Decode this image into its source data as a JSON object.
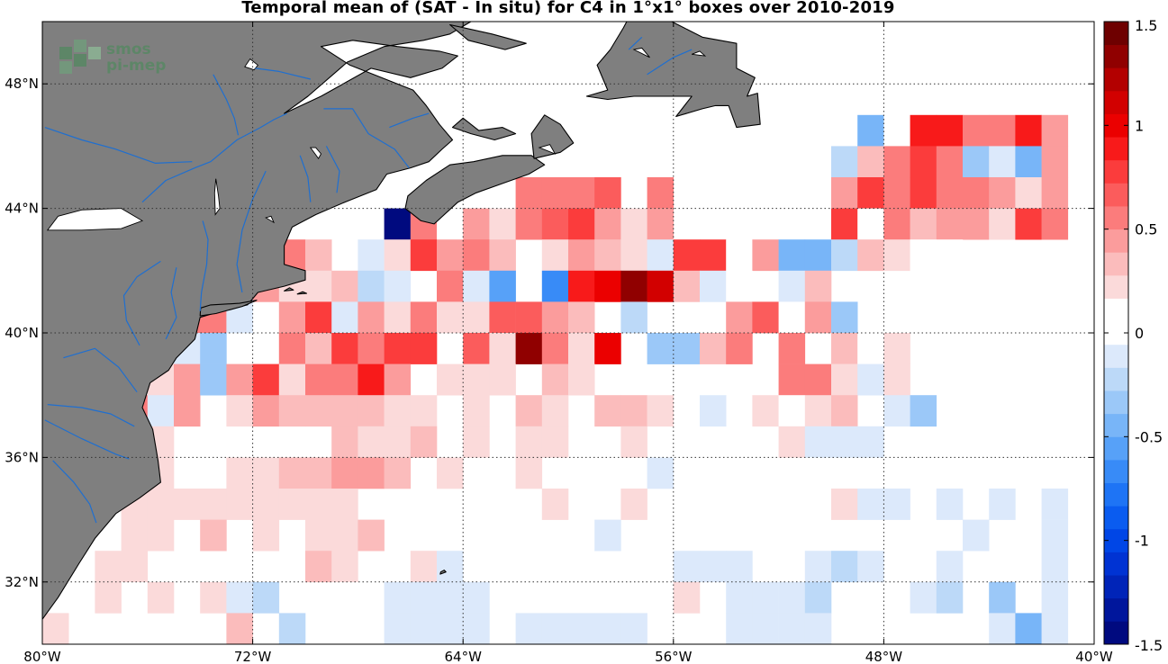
{
  "title": "Temporal mean of (SAT - In situ) for C4 in 1°x1° boxes over 2010-2019",
  "watermark": {
    "line1": "smos",
    "line2": "pi-mep",
    "color": "#4f8a5e"
  },
  "map": {
    "projection": "equirectangular",
    "lon_range": [
      -80,
      -40
    ],
    "lat_range": [
      30,
      50
    ],
    "land_color": "#7f7f7f",
    "river_color": "#1f6fd0",
    "grid": true
  },
  "axes": {
    "x_ticks": [
      "80°W",
      "72°W",
      "64°W",
      "56°W",
      "48°W",
      "40°W"
    ],
    "y_ticks": [
      "32°N",
      "36°N",
      "40°N",
      "44°N",
      "48°N"
    ]
  },
  "colorbar": {
    "min": -1.5,
    "max": 1.5,
    "ticks": [
      "1.5",
      "1",
      "0.5",
      "0",
      "-0.5",
      "-1",
      "-1.5"
    ],
    "colors_low_to_high": [
      "#000a7f",
      "#00169c",
      "#0024b8",
      "#0033d3",
      "#0046e6",
      "#0a5cf0",
      "#1e74f5",
      "#388bf7",
      "#57a1f8",
      "#78b5f8",
      "#9bc8f8",
      "#bcd9f8",
      "#dce9fb",
      "#ffffff",
      "#ffffff",
      "#fbdada",
      "#fbbcbc",
      "#fb9c9c",
      "#fb7c7c",
      "#fb5c5c",
      "#fb3c3c",
      "#f81a1a",
      "#eb0000",
      "#d20000",
      "#b30000",
      "#900000",
      "#6e0000"
    ]
  },
  "chart_data": {
    "type": "heatmap",
    "title": "Temporal mean of (SAT - In situ) for C4 in 1°x1° boxes over 2010-2019",
    "xlabel": "",
    "ylabel": "",
    "xlim": [
      -80,
      -40
    ],
    "ylim": [
      30,
      50
    ],
    "cell_size_deg": 1,
    "value_range": [
      -1.5,
      1.5
    ],
    "cells": [
      [
        -49,
        46,
        -0.4
      ],
      [
        -48,
        46,
        0.1
      ],
      [
        -47,
        46,
        0.9
      ],
      [
        -46,
        46,
        0.9
      ],
      [
        -45,
        46,
        0.5
      ],
      [
        -44,
        46,
        0.6
      ],
      [
        -43,
        46,
        0.9
      ],
      [
        -42,
        46,
        0.4
      ],
      [
        -50,
        45,
        -0.2
      ],
      [
        -49,
        45,
        0.3
      ],
      [
        -48,
        45,
        0.6
      ],
      [
        -47,
        45,
        0.8
      ],
      [
        -46,
        45,
        0.6
      ],
      [
        -45,
        45,
        -0.3
      ],
      [
        -44,
        45,
        -0.1
      ],
      [
        -43,
        45,
        -0.4
      ],
      [
        -42,
        45,
        0.4
      ],
      [
        -62,
        44,
        0.5
      ],
      [
        -61,
        44,
        0.6
      ],
      [
        -60,
        44,
        0.5
      ],
      [
        -59,
        44,
        0.7
      ],
      [
        -57,
        44,
        0.5
      ],
      [
        -50,
        44,
        0.4
      ],
      [
        -49,
        44,
        0.8
      ],
      [
        -48,
        44,
        0.6
      ],
      [
        -47,
        44,
        0.8
      ],
      [
        -46,
        44,
        0.5
      ],
      [
        -45,
        44,
        0.5
      ],
      [
        -44,
        44,
        0.4
      ],
      [
        -43,
        44,
        0.2
      ],
      [
        -42,
        44,
        0.4
      ],
      [
        -67,
        43,
        -1.5
      ],
      [
        -66,
        43,
        0.5
      ],
      [
        -65,
        43,
        0.1
      ],
      [
        -64,
        43,
        0.4
      ],
      [
        -63,
        43,
        0.2
      ],
      [
        -62,
        43,
        0.6
      ],
      [
        -61,
        43,
        0.7
      ],
      [
        -60,
        43,
        0.8
      ],
      [
        -59,
        43,
        0.4
      ],
      [
        -58,
        43,
        0.2
      ],
      [
        -57,
        43,
        0.4
      ],
      [
        -50,
        43,
        0.8
      ],
      [
        -49,
        43,
        0.1
      ],
      [
        -48,
        43,
        0.5
      ],
      [
        -47,
        43,
        0.3
      ],
      [
        -46,
        43,
        0.4
      ],
      [
        -45,
        43,
        0.4
      ],
      [
        -44,
        43,
        0.2
      ],
      [
        -43,
        43,
        0.8
      ],
      [
        -42,
        43,
        0.5
      ],
      [
        -72,
        42,
        0.1
      ],
      [
        -71,
        42,
        0.5
      ],
      [
        -70,
        42,
        0.3
      ],
      [
        -68,
        42,
        -0.1
      ],
      [
        -67,
        42,
        0.2
      ],
      [
        -66,
        42,
        0.8
      ],
      [
        -65,
        42,
        0.4
      ],
      [
        -64,
        42,
        0.5
      ],
      [
        -63,
        42,
        0.3
      ],
      [
        -61,
        42,
        0.2
      ],
      [
        -60,
        42,
        0.4
      ],
      [
        -59,
        42,
        0.3
      ],
      [
        -58,
        42,
        0.2
      ],
      [
        -57,
        42,
        -0.1
      ],
      [
        -56,
        42,
        0.8
      ],
      [
        -55,
        42,
        0.8
      ],
      [
        -54,
        42,
        0.1
      ],
      [
        -53,
        42,
        0.4
      ],
      [
        -52,
        42,
        -0.4
      ],
      [
        -51,
        42,
        -0.4
      ],
      [
        -50,
        42,
        -0.2
      ],
      [
        -49,
        42,
        0.3
      ],
      [
        -48,
        42,
        0.2
      ],
      [
        -47,
        42,
        0.1
      ],
      [
        -46,
        42,
        0.1
      ],
      [
        -74,
        41,
        1.4
      ],
      [
        -73,
        41,
        -0.4
      ],
      [
        -72,
        41,
        0.4
      ],
      [
        -71,
        41,
        0.2
      ],
      [
        -70,
        41,
        0.2
      ],
      [
        -69,
        41,
        0.3
      ],
      [
        -68,
        41,
        -0.2
      ],
      [
        -67,
        41,
        -0.1
      ],
      [
        -65,
        41,
        0.6
      ],
      [
        -64,
        41,
        -0.1
      ],
      [
        -63,
        41,
        -0.6
      ],
      [
        -61,
        41,
        -0.7
      ],
      [
        -60,
        41,
        0.9
      ],
      [
        -59,
        41,
        1.0
      ],
      [
        -58,
        41,
        1.3
      ],
      [
        -57,
        41,
        1.1
      ],
      [
        -56,
        41,
        0.3
      ],
      [
        -55,
        41,
        -0.1
      ],
      [
        -54,
        41,
        0.1
      ],
      [
        -52,
        41,
        -0.1
      ],
      [
        -51,
        41,
        0.3
      ],
      [
        -76,
        40,
        -0.4
      ],
      [
        -75,
        40,
        0.5
      ],
      [
        -74,
        40,
        0.5
      ],
      [
        -73,
        40,
        -0.1
      ],
      [
        -71,
        40,
        0.4
      ],
      [
        -70,
        40,
        0.8
      ],
      [
        -69,
        40,
        -0.1
      ],
      [
        -68,
        40,
        0.4
      ],
      [
        -67,
        40,
        0.2
      ],
      [
        -66,
        40,
        0.6
      ],
      [
        -65,
        40,
        0.2
      ],
      [
        -64,
        40,
        0.2
      ],
      [
        -63,
        40,
        0.7
      ],
      [
        -62,
        40,
        0.7
      ],
      [
        -61,
        40,
        0.4
      ],
      [
        -60,
        40,
        0.3
      ],
      [
        -58,
        40,
        -0.2
      ],
      [
        -54,
        40,
        0.4
      ],
      [
        -53,
        40,
        0.7
      ],
      [
        -52,
        40,
        0.1
      ],
      [
        -51,
        40,
        0.4
      ],
      [
        -50,
        40,
        -0.3
      ],
      [
        -78,
        39,
        -0.6
      ],
      [
        -77,
        39,
        -0.3
      ],
      [
        -75,
        39,
        -0.1
      ],
      [
        -74,
        39,
        -0.3
      ],
      [
        -72,
        39,
        0.1
      ],
      [
        -71,
        39,
        0.6
      ],
      [
        -70,
        39,
        0.3
      ],
      [
        -69,
        39,
        0.8
      ],
      [
        -68,
        39,
        0.5
      ],
      [
        -67,
        39,
        0.8
      ],
      [
        -66,
        39,
        0.8
      ],
      [
        -64,
        39,
        0.7
      ],
      [
        -63,
        39,
        0.2
      ],
      [
        -62,
        39,
        1.3
      ],
      [
        -61,
        39,
        0.5
      ],
      [
        -60,
        39,
        0.2
      ],
      [
        -59,
        39,
        1.0
      ],
      [
        -57,
        39,
        -0.3
      ],
      [
        -56,
        39,
        -0.3
      ],
      [
        -55,
        39,
        0.3
      ],
      [
        -54,
        39,
        0.5
      ],
      [
        -52,
        39,
        0.6
      ],
      [
        -50,
        39,
        0.3
      ],
      [
        -49,
        39,
        0.1
      ],
      [
        -48,
        39,
        0.2
      ],
      [
        -79,
        38,
        -0.8
      ],
      [
        -76,
        38,
        0.2
      ],
      [
        -75,
        38,
        0.4
      ],
      [
        -74,
        38,
        -0.3
      ],
      [
        -73,
        38,
        0.4
      ],
      [
        -72,
        38,
        0.8
      ],
      [
        -71,
        38,
        0.2
      ],
      [
        -70,
        38,
        0.6
      ],
      [
        -69,
        38,
        0.6
      ],
      [
        -68,
        38,
        0.9
      ],
      [
        -67,
        38,
        0.4
      ],
      [
        -65,
        38,
        0.2
      ],
      [
        -64,
        38,
        0.2
      ],
      [
        -63,
        38,
        0.2
      ],
      [
        -61,
        38,
        0.3
      ],
      [
        -60,
        38,
        0.2
      ],
      [
        -52,
        38,
        0.6
      ],
      [
        -51,
        38,
        0.6
      ],
      [
        -50,
        38,
        0.2
      ],
      [
        -49,
        38,
        -0.1
      ],
      [
        -48,
        38,
        0.2
      ],
      [
        -80,
        37,
        0.5
      ],
      [
        -79,
        37,
        -0.1
      ],
      [
        -78,
        37,
        0.6
      ],
      [
        -77,
        37,
        0.6
      ],
      [
        -76,
        37,
        -0.1
      ],
      [
        -75,
        37,
        0.4
      ],
      [
        -73,
        37,
        0.2
      ],
      [
        -72,
        37,
        0.4
      ],
      [
        -71,
        37,
        0.3
      ],
      [
        -70,
        37,
        0.3
      ],
      [
        -69,
        37,
        0.3
      ],
      [
        -68,
        37,
        0.3
      ],
      [
        -67,
        37,
        0.2
      ],
      [
        -66,
        37,
        0.2
      ],
      [
        -64,
        37,
        0.2
      ],
      [
        -62,
        37,
        0.3
      ],
      [
        -61,
        37,
        0.2
      ],
      [
        -59,
        37,
        0.3
      ],
      [
        -58,
        37,
        0.3
      ],
      [
        -57,
        37,
        0.2
      ],
      [
        -55,
        37,
        -0.1
      ],
      [
        -53,
        37,
        0.2
      ],
      [
        -52,
        37,
        0.1
      ],
      [
        -51,
        37,
        0.2
      ],
      [
        -50,
        37,
        0.3
      ],
      [
        -48,
        37,
        -0.1
      ],
      [
        -47,
        37,
        -0.3
      ],
      [
        -79,
        36,
        0.3
      ],
      [
        -78,
        36,
        0.4
      ],
      [
        -76,
        36,
        0.2
      ],
      [
        -69,
        36,
        0.3
      ],
      [
        -68,
        36,
        0.2
      ],
      [
        -67,
        36,
        0.2
      ],
      [
        -66,
        36,
        0.3
      ],
      [
        -64,
        36,
        0.2
      ],
      [
        -62,
        36,
        0.2
      ],
      [
        -61,
        36,
        0.2
      ],
      [
        -58,
        36,
        0.2
      ],
      [
        -52,
        36,
        0.2
      ],
      [
        -51,
        36,
        -0.1
      ],
      [
        -50,
        36,
        -0.1
      ],
      [
        -49,
        36,
        -0.1
      ],
      [
        -79,
        35,
        0.6
      ],
      [
        -78,
        35,
        -0.3
      ],
      [
        -76,
        35,
        0.2
      ],
      [
        -73,
        35,
        0.2
      ],
      [
        -72,
        35,
        0.2
      ],
      [
        -71,
        35,
        0.3
      ],
      [
        -70,
        35,
        0.3
      ],
      [
        -69,
        35,
        0.4
      ],
      [
        -68,
        35,
        0.4
      ],
      [
        -67,
        35,
        0.3
      ],
      [
        -65,
        35,
        0.2
      ],
      [
        -62,
        35,
        0.2
      ],
      [
        -57,
        35,
        -0.1
      ],
      [
        -77,
        34,
        0.2
      ],
      [
        -76,
        34,
        0.2
      ],
      [
        -75,
        34,
        0.2
      ],
      [
        -74,
        34,
        0.2
      ],
      [
        -73,
        34,
        0.2
      ],
      [
        -72,
        34,
        0.2
      ],
      [
        -71,
        34,
        0.2
      ],
      [
        -70,
        34,
        0.2
      ],
      [
        -69,
        34,
        0.2
      ],
      [
        -61,
        34,
        0.2
      ],
      [
        -58,
        34,
        0.2
      ],
      [
        -50,
        34,
        0.2
      ],
      [
        -49,
        34,
        -0.1
      ],
      [
        -48,
        34,
        -0.1
      ],
      [
        -46,
        34,
        -0.1
      ],
      [
        -44,
        34,
        -0.1
      ],
      [
        -42,
        34,
        -0.1
      ],
      [
        -77,
        33,
        0.2
      ],
      [
        -76,
        33,
        0.2
      ],
      [
        -74,
        33,
        0.3
      ],
      [
        -72,
        33,
        0.2
      ],
      [
        -70,
        33,
        0.2
      ],
      [
        -69,
        33,
        0.2
      ],
      [
        -68,
        33,
        0.3
      ],
      [
        -59,
        33,
        -0.1
      ],
      [
        -45,
        33,
        -0.1
      ],
      [
        -42,
        33,
        -0.1
      ],
      [
        -78,
        32,
        0.2
      ],
      [
        -77,
        32,
        0.2
      ],
      [
        -70,
        32,
        0.3
      ],
      [
        -69,
        32,
        0.2
      ],
      [
        -66,
        32,
        0.2
      ],
      [
        -65,
        32,
        -0.1
      ],
      [
        -56,
        32,
        -0.1
      ],
      [
        -55,
        32,
        -0.1
      ],
      [
        -54,
        32,
        -0.1
      ],
      [
        -51,
        32,
        -0.1
      ],
      [
        -50,
        32,
        -0.2
      ],
      [
        -49,
        32,
        -0.1
      ],
      [
        -46,
        32,
        -0.1
      ],
      [
        -42,
        32,
        -0.1
      ],
      [
        -78,
        31,
        0.2
      ],
      [
        -76,
        31,
        0.2
      ],
      [
        -74,
        31,
        0.2
      ],
      [
        -73,
        31,
        -0.1
      ],
      [
        -72,
        31,
        -0.2
      ],
      [
        -67,
        31,
        -0.1
      ],
      [
        -66,
        31,
        -0.1
      ],
      [
        -65,
        31,
        -0.1
      ],
      [
        -64,
        31,
        -0.1
      ],
      [
        -56,
        31,
        0.2
      ],
      [
        -54,
        31,
        -0.1
      ],
      [
        -53,
        31,
        -0.1
      ],
      [
        -52,
        31,
        -0.1
      ],
      [
        -51,
        31,
        -0.2
      ],
      [
        -47,
        31,
        -0.1
      ],
      [
        -46,
        31,
        -0.2
      ],
      [
        -44,
        31,
        -0.3
      ],
      [
        -42,
        31,
        -0.1
      ],
      [
        -80,
        30,
        0.2
      ],
      [
        -73,
        30,
        0.3
      ],
      [
        -71,
        30,
        -0.2
      ],
      [
        -67,
        30,
        -0.1
      ],
      [
        -66,
        30,
        -0.1
      ],
      [
        -65,
        30,
        -0.1
      ],
      [
        -64,
        30,
        -0.1
      ],
      [
        -62,
        30,
        -0.1
      ],
      [
        -61,
        30,
        -0.1
      ],
      [
        -60,
        30,
        -0.1
      ],
      [
        -59,
        30,
        -0.1
      ],
      [
        -58,
        30,
        -0.1
      ],
      [
        -54,
        30,
        -0.1
      ],
      [
        -53,
        30,
        -0.1
      ],
      [
        -52,
        30,
        -0.1
      ],
      [
        -51,
        30,
        -0.1
      ],
      [
        -44,
        30,
        -0.1
      ],
      [
        -43,
        30,
        -0.4
      ],
      [
        -42,
        30,
        -0.1
      ]
    ]
  }
}
